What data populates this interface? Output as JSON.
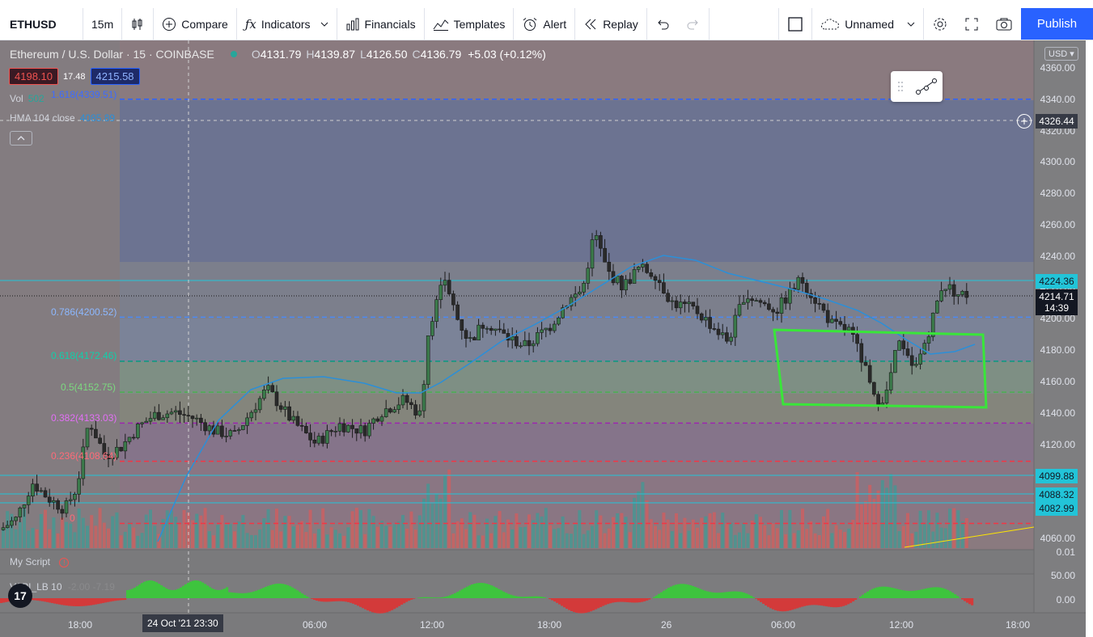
{
  "toolbar": {
    "symbol": "ETHUSD",
    "interval": "15m",
    "compare": "Compare",
    "indicators": "Indicators",
    "financials": "Financials",
    "templates": "Templates",
    "alert": "Alert",
    "replay": "Replay",
    "layout_name": "Unnamed",
    "publish": "Publish"
  },
  "legend": {
    "symbol_desc": "Ethereum / U.S. Dollar · 15 · COINBASE",
    "o_label": "O",
    "o_value": "4131.79",
    "h_label": "H",
    "h_value": "4139.87",
    "l_label": "L",
    "l_value": "4126.50",
    "c_label": "C",
    "c_value": "4136.79",
    "change": "+5.03 (+0.12%)",
    "sell_price": "4198.10",
    "spread": "17.48",
    "buy_price": "4215.58",
    "vol_label": "Vol",
    "vol_value": "502",
    "hma_label": "HMA 104 close",
    "hma_value": "4085.89"
  },
  "colors": {
    "up": "#26a69a",
    "down": "#ef5350",
    "hma": "#2196f3",
    "highlight": "#39e639",
    "accent": "#2962ff"
  },
  "fib_levels": [
    {
      "label": "1.618(4339.51)",
      "color": "#2962ff"
    },
    {
      "label": "0.786(4200.52)",
      "color": "#4b8bf5"
    },
    {
      "label": "0.618(4172.46)",
      "color": "#089981"
    },
    {
      "label": "0.5(4152.75)",
      "color": "#4caf50"
    },
    {
      "label": "0.382(4133.03)",
      "color": "#9c27b0"
    },
    {
      "label": "0.236(4108.64)",
      "color": "#f23645"
    },
    {
      "label": "0",
      "color": "#f23645"
    }
  ],
  "price_axis": {
    "currency": "USD",
    "ticks": [
      "4360.00",
      "4340.00",
      "4320.00",
      "4300.00",
      "4280.00",
      "4260.00",
      "4240.00",
      "4220.00",
      "4200.00",
      "4180.00",
      "4160.00",
      "4140.00",
      "4120.00",
      "4100.00",
      "4080.00",
      "4060.00"
    ],
    "crosshair_price": "4326.44",
    "last_price": "4214.71",
    "countdown": "14:39",
    "tag_4224": "4224.36",
    "tag_4099": "4099.88",
    "tag_4088": "4088.32",
    "tag_4082": "4082.99",
    "vol_axis": "0.01",
    "osc_ticks": [
      "50.00",
      "0.00"
    ]
  },
  "time_axis": {
    "labels": [
      "18:00",
      "06:00",
      "12:00",
      "18:00",
      "26",
      "06:00",
      "12:00",
      "18:00"
    ],
    "crosshair_time": "24 Oct '21   23:30"
  },
  "panes": {
    "script_name": "My Script",
    "vapi_name": "VAPI_LB 10",
    "vapi_values": "-2.00  -7.19"
  },
  "logo": "17"
}
